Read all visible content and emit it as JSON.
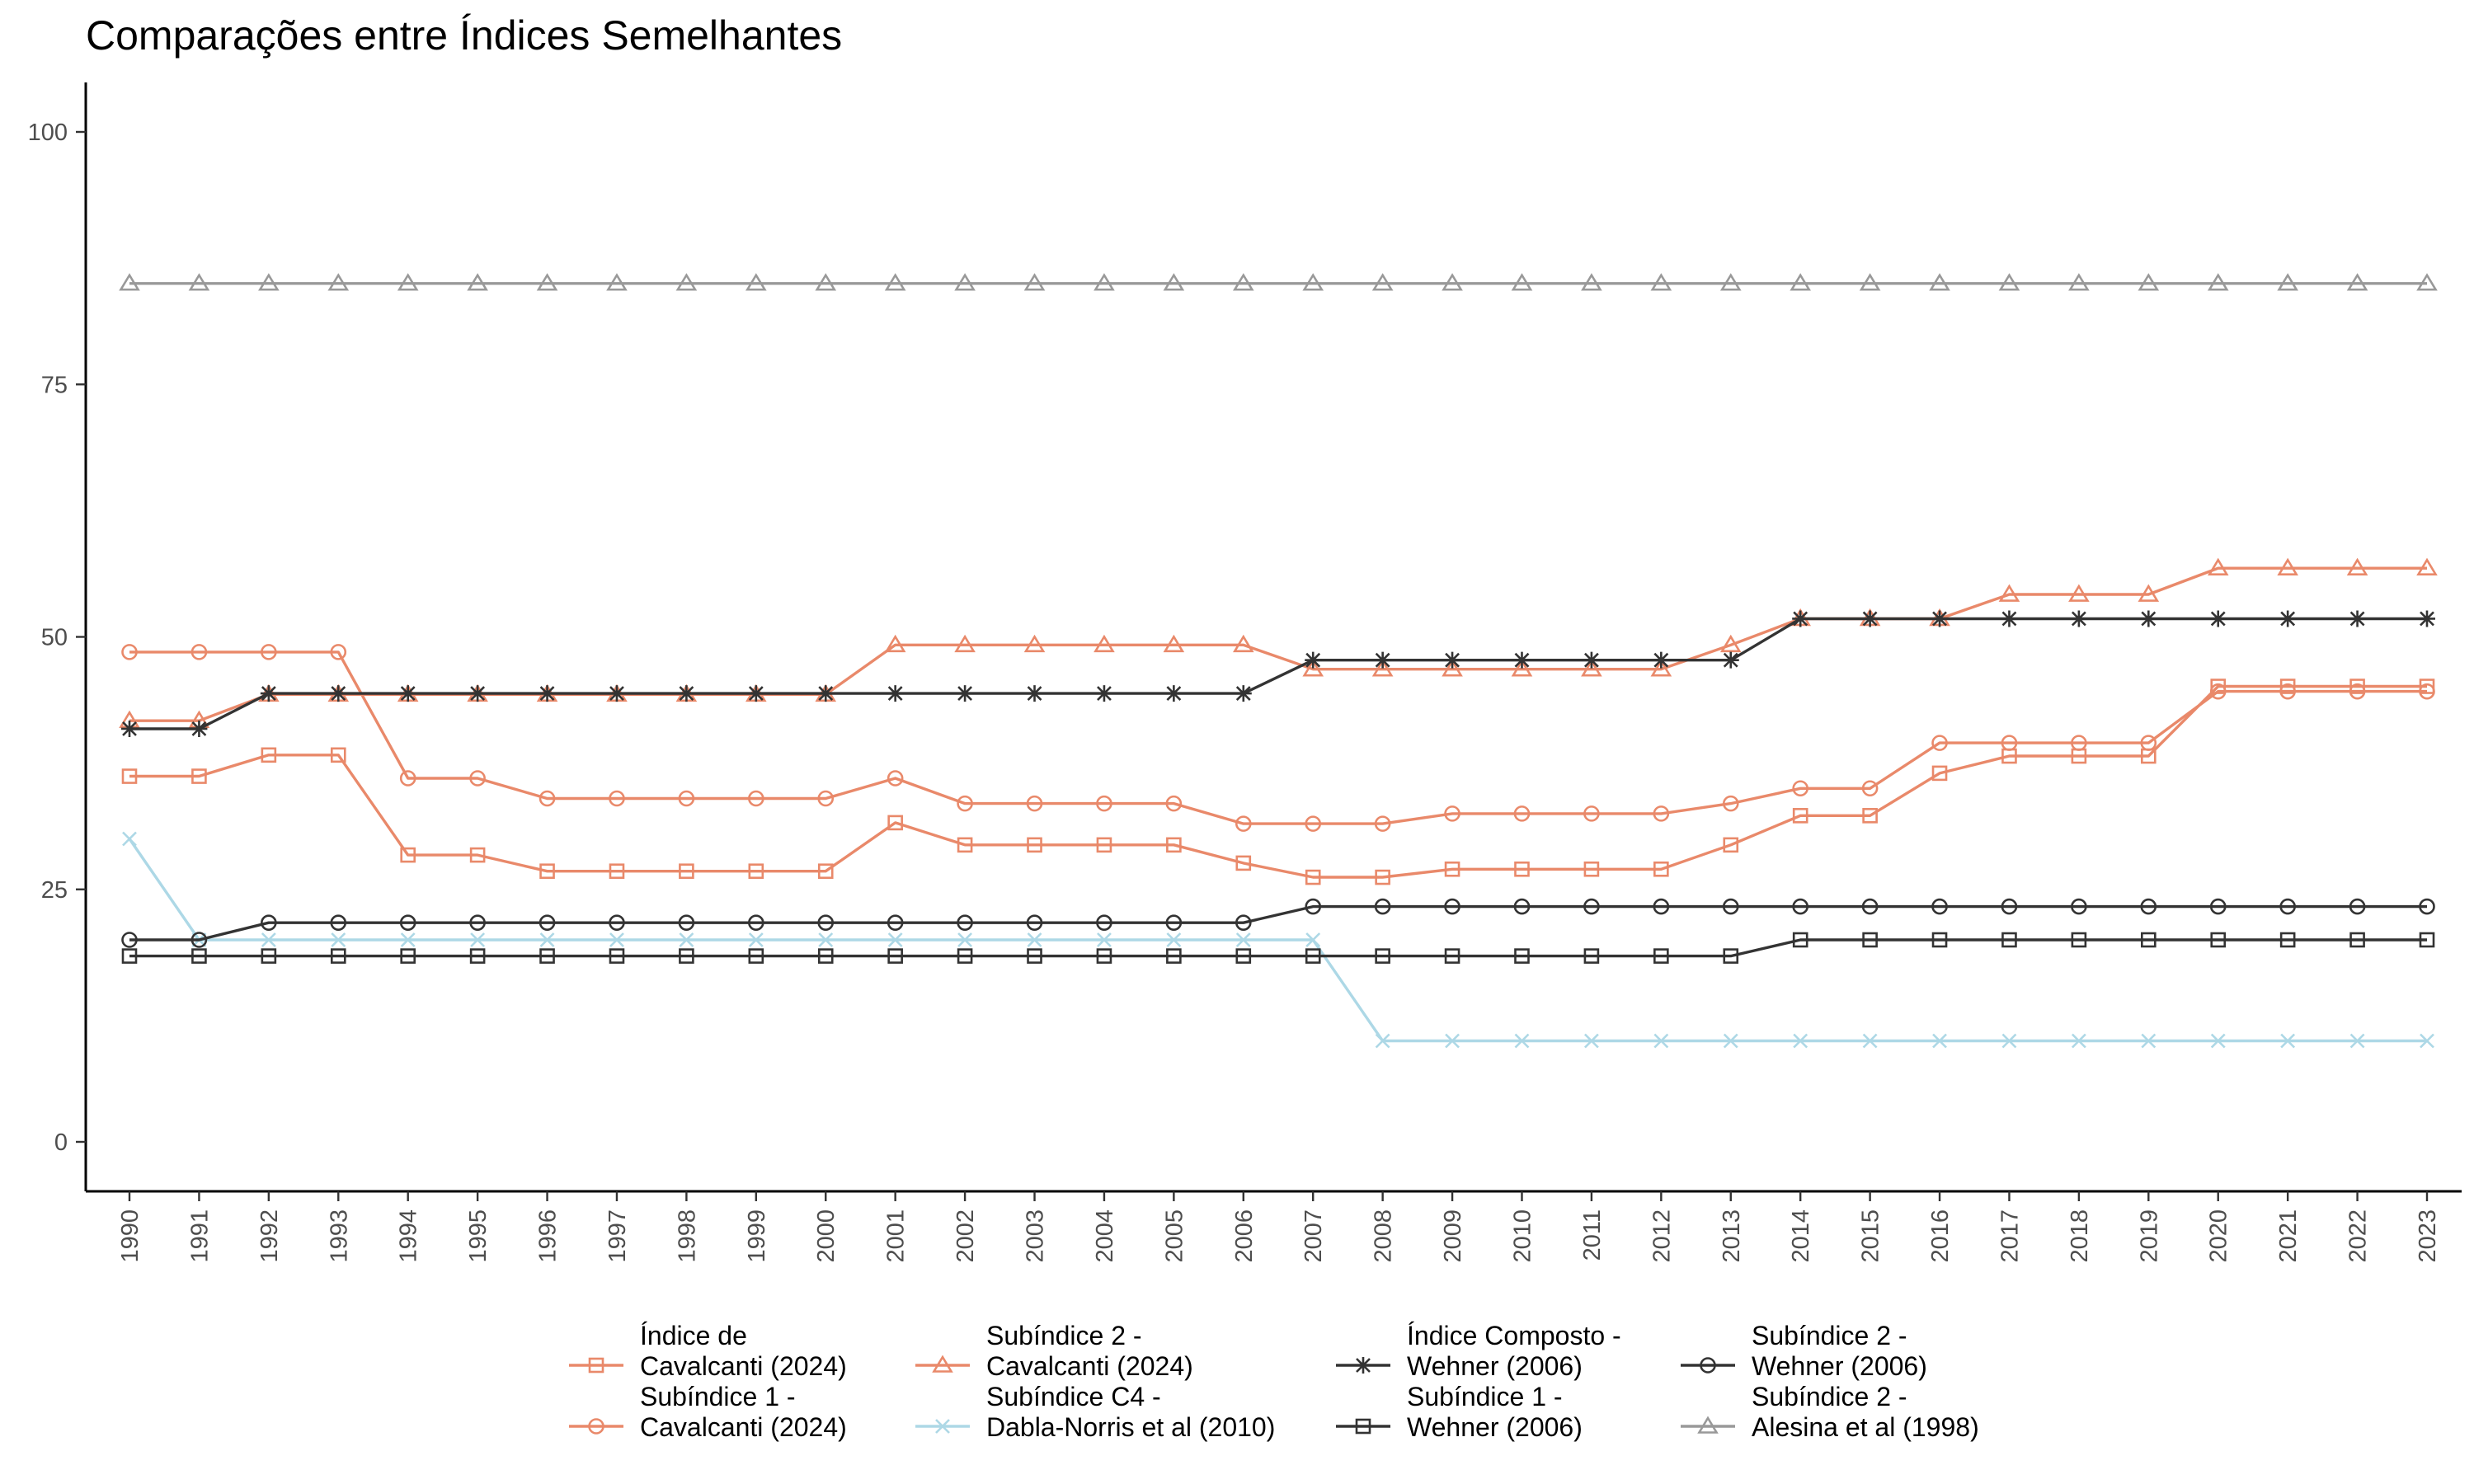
{
  "chart_data": {
    "type": "line",
    "title": "Comparações entre Índices Semelhantes",
    "xlabel": "",
    "ylabel": "",
    "ylim": [
      0,
      100
    ],
    "y_ticks": [
      0,
      25,
      50,
      75,
      100
    ],
    "grid": false,
    "legend_position": "bottom",
    "x": [
      1990,
      1991,
      1992,
      1993,
      1994,
      1995,
      1996,
      1997,
      1998,
      1999,
      2000,
      2001,
      2002,
      2003,
      2004,
      2005,
      2006,
      2007,
      2008,
      2009,
      2010,
      2011,
      2012,
      2013,
      2014,
      2015,
      2016,
      2017,
      2018,
      2019,
      2020,
      2021,
      2022,
      2023
    ],
    "series": [
      {
        "name": "Índice de Cavalcanti (2024)",
        "legend_lines": [
          "Índice de",
          "Cavalcanti (2024)"
        ],
        "color": "#E9896A",
        "marker": "square",
        "values": [
          36.2,
          36.2,
          38.3,
          38.3,
          28.4,
          28.4,
          26.8,
          26.8,
          26.8,
          26.8,
          26.8,
          31.6,
          29.4,
          29.4,
          29.4,
          29.4,
          27.6,
          26.2,
          26.2,
          27.0,
          27.0,
          27.0,
          27.0,
          29.4,
          32.3,
          32.3,
          36.5,
          38.2,
          38.2,
          38.2,
          45.1,
          45.1,
          45.1,
          45.1
        ]
      },
      {
        "name": "Subíndice 1 - Cavalcanti (2024)",
        "legend_lines": [
          "Subíndice 1 -",
          "Cavalcanti (2024)"
        ],
        "color": "#E9896A",
        "marker": "circle",
        "values": [
          48.5,
          48.5,
          48.5,
          48.5,
          36.0,
          36.0,
          34.0,
          34.0,
          34.0,
          34.0,
          34.0,
          36.0,
          33.5,
          33.5,
          33.5,
          33.5,
          31.5,
          31.5,
          31.5,
          32.5,
          32.5,
          32.5,
          32.5,
          33.5,
          35.0,
          35.0,
          39.5,
          39.5,
          39.5,
          39.5,
          44.6,
          44.6,
          44.6,
          44.6
        ]
      },
      {
        "name": "Subíndice 2 - Cavalcanti (2024)",
        "legend_lines": [
          "Subíndice 2 -",
          "Cavalcanti (2024)"
        ],
        "color": "#E9896A",
        "marker": "triangle",
        "values": [
          41.7,
          41.7,
          44.3,
          44.3,
          44.3,
          44.3,
          44.3,
          44.3,
          44.3,
          44.3,
          44.3,
          49.2,
          49.2,
          49.2,
          49.2,
          49.2,
          49.2,
          46.8,
          46.8,
          46.8,
          46.8,
          46.8,
          46.8,
          49.2,
          51.8,
          51.8,
          51.8,
          54.2,
          54.2,
          54.2,
          56.8,
          56.8,
          56.8,
          56.8
        ]
      },
      {
        "name": "Subíndice C4 - Dabla-Norris et al (2010)",
        "legend_lines": [
          "Subíndice C4 -",
          "Dabla-Norris et al (2010)"
        ],
        "color": "#ADD8E6",
        "marker": "x",
        "values": [
          30,
          20,
          20,
          20,
          20,
          20,
          20,
          20,
          20,
          20,
          20,
          20,
          20,
          20,
          20,
          20,
          20,
          20,
          10,
          10,
          10,
          10,
          10,
          10,
          10,
          10,
          10,
          10,
          10,
          10,
          10,
          10,
          10,
          10
        ]
      },
      {
        "name": "Índice Composto - Wehner (2006)",
        "legend_lines": [
          "Índice Composto -",
          "Wehner (2006)"
        ],
        "color": "#333333",
        "marker": "asterisk",
        "values": [
          40.9,
          40.9,
          44.4,
          44.4,
          44.4,
          44.4,
          44.4,
          44.4,
          44.4,
          44.4,
          44.4,
          44.4,
          44.4,
          44.4,
          44.4,
          44.4,
          44.4,
          47.7,
          47.7,
          47.7,
          47.7,
          47.7,
          47.7,
          47.7,
          51.8,
          51.8,
          51.8,
          51.8,
          51.8,
          51.8,
          51.8,
          51.8,
          51.8,
          51.8
        ]
      },
      {
        "name": "Subíndice 1 - Wehner (2006)",
        "legend_lines": [
          "Subíndice 1 -",
          "Wehner (2006)"
        ],
        "color": "#333333",
        "marker": "square",
        "values": [
          18.4,
          18.4,
          18.4,
          18.4,
          18.4,
          18.4,
          18.4,
          18.4,
          18.4,
          18.4,
          18.4,
          18.4,
          18.4,
          18.4,
          18.4,
          18.4,
          18.4,
          18.4,
          18.4,
          18.4,
          18.4,
          18.4,
          18.4,
          18.4,
          20.0,
          20.0,
          20.0,
          20.0,
          20.0,
          20.0,
          20.0,
          20.0,
          20.0,
          20.0
        ]
      },
      {
        "name": "Subíndice 2 - Wehner (2006)",
        "legend_lines": [
          "Subíndice 2 -",
          "Wehner (2006)"
        ],
        "color": "#333333",
        "marker": "circle",
        "values": [
          20.0,
          20.0,
          21.7,
          21.7,
          21.7,
          21.7,
          21.7,
          21.7,
          21.7,
          21.7,
          21.7,
          21.7,
          21.7,
          21.7,
          21.7,
          21.7,
          21.7,
          23.3,
          23.3,
          23.3,
          23.3,
          23.3,
          23.3,
          23.3,
          23.3,
          23.3,
          23.3,
          23.3,
          23.3,
          23.3,
          23.3,
          23.3,
          23.3,
          23.3
        ]
      },
      {
        "name": "Subíndice 2 - Alesina et al (1998)",
        "legend_lines": [
          "Subíndice 2 -",
          "Alesina et al (1998)"
        ],
        "color": "#999999",
        "marker": "triangle",
        "values": [
          85,
          85,
          85,
          85,
          85,
          85,
          85,
          85,
          85,
          85,
          85,
          85,
          85,
          85,
          85,
          85,
          85,
          85,
          85,
          85,
          85,
          85,
          85,
          85,
          85,
          85,
          85,
          85,
          85,
          85,
          85,
          85,
          85,
          85
        ]
      }
    ]
  }
}
